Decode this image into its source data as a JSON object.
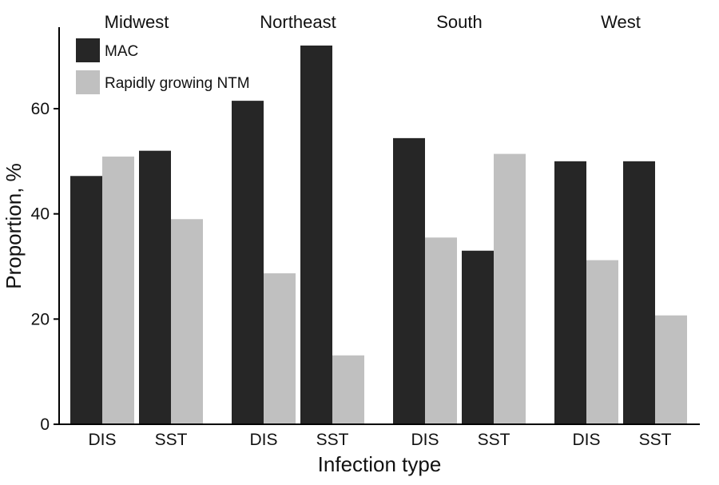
{
  "chart_data": {
    "type": "bar",
    "groups": [
      "Midwest",
      "Northeast",
      "South",
      "West"
    ],
    "categories": [
      "DIS",
      "SST"
    ],
    "series": [
      {
        "name": "MAC",
        "color": "#262626",
        "values": [
          [
            47.2,
            52.0
          ],
          [
            61.5,
            72.0
          ],
          [
            54.4,
            33.0
          ],
          [
            50.0,
            50.0
          ]
        ]
      },
      {
        "name": "Rapidly growing NTM",
        "color": "#c0c0c0",
        "values": [
          [
            50.9,
            39.0
          ],
          [
            28.7,
            13.1
          ],
          [
            35.5,
            51.4
          ],
          [
            31.2,
            20.7
          ]
        ]
      }
    ],
    "xlabel": "Infection type",
    "ylabel": "Proportion, %",
    "ylim": [
      0,
      75
    ],
    "yticks": [
      0,
      20,
      40,
      60
    ],
    "grid": false,
    "legend_position": "top-left"
  }
}
